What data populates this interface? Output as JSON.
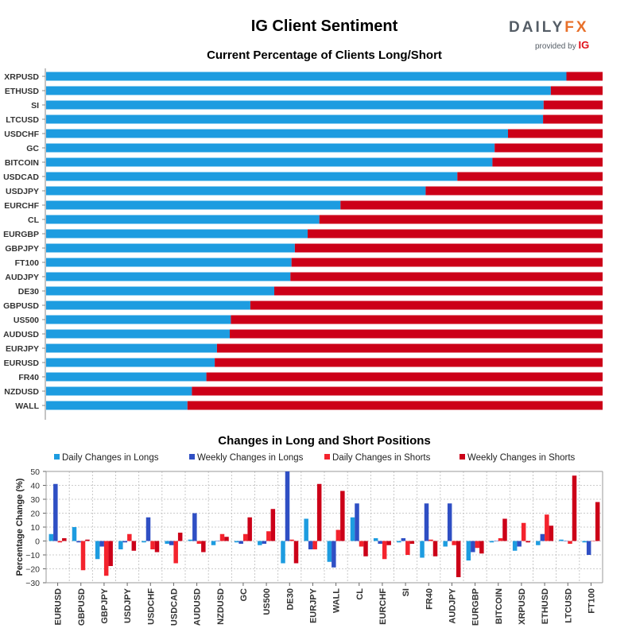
{
  "header": {
    "title": "IG Client Sentiment",
    "logo_text_main": "DAILY",
    "logo_text_accent": "FX",
    "logo_sub": "provided by",
    "logo_sub_accent": "IG"
  },
  "chart_data": [
    {
      "type": "bar",
      "orientation": "horizontal",
      "stacked": true,
      "title": "Current Percentage of Clients Long/Short",
      "categories": [
        "XRPUSD",
        "ETHUSD",
        "SI",
        "LTCUSD",
        "USDCHF",
        "GC",
        "BITCOIN",
        "USDCAD",
        "USDJPY",
        "EURCHF",
        "CL",
        "EURGBP",
        "GBPJPY",
        "FT100",
        "AUDJPY",
        "DE30",
        "GBPUSD",
        "US500",
        "AUDUSD",
        "EURJPY",
        "EURUSD",
        "FR40",
        "NZDUSD",
        "WALL"
      ],
      "series": [
        {
          "values": [
            93.5,
            90.7,
            89.4,
            89.3,
            83.0,
            80.6,
            80.2,
            73.9,
            68.2,
            52.9,
            49.1,
            47.0,
            44.7,
            44.1,
            43.9,
            41.0,
            36.7,
            33.2,
            33.0,
            30.7,
            30.3,
            28.8,
            26.2,
            25.4
          ]
        },
        {
          "values": [
            6.5,
            9.3,
            10.6,
            10.7,
            17.0,
            19.4,
            19.8,
            26.1,
            31.8,
            47.1,
            50.9,
            53.0,
            55.3,
            55.9,
            56.1,
            59.0,
            63.3,
            66.8,
            67.0,
            69.3,
            69.7,
            71.2,
            73.8,
            74.6
          ]
        }
      ],
      "xlim": [
        0,
        100
      ],
      "colors": {
        "long": "#1d9ce0",
        "short": "#cc0018"
      }
    },
    {
      "type": "bar",
      "title": "Changes in Long and Short Positions",
      "ylabel": "Percentage Change (%)",
      "xlabel": "",
      "ylim": [
        -30,
        50
      ],
      "yticks": [
        "50",
        "40",
        "30",
        "20",
        "10",
        "0",
        "−10",
        "−20",
        "−30"
      ],
      "grid": true,
      "legend_position": "top",
      "categories": [
        "EURUSD",
        "GBPUSD",
        "GBPJPY",
        "USDJPY",
        "USDCHF",
        "USDCAD",
        "AUDUSD",
        "NZDUSD",
        "GC",
        "US500",
        "DE30",
        "EURJPY",
        "WALL",
        "CL",
        "EURCHF",
        "SI",
        "FR40",
        "AUDJPY",
        "EURGBP",
        "BITCOIN",
        "XRPUSD",
        "ETHUSD",
        "LTCUSD",
        "FT100"
      ],
      "series": [
        {
          "name": "Daily Changes in Longs",
          "color": "#1d9ce0",
          "values": [
            5,
            10,
            -13,
            -6,
            -1,
            -2,
            1,
            -3,
            -1,
            -3,
            -16,
            16,
            -15,
            17,
            2,
            -1,
            -12,
            -4,
            -14,
            -1,
            -7,
            -3,
            1,
            -1
          ]
        },
        {
          "name": "Weekly Changes in Longs",
          "color": "#2f4fc4",
          "values": [
            41,
            -1,
            -4,
            -1,
            17,
            -3,
            20,
            0,
            -2,
            -2,
            50,
            -6,
            -19,
            27,
            -2,
            2,
            27,
            27,
            -8,
            0,
            -4,
            5,
            0,
            -10
          ]
        },
        {
          "name": "Daily Changes in Shorts",
          "color": "#f4232d",
          "values": [
            -1,
            -21,
            -25,
            5,
            -6,
            -16,
            -2,
            5,
            5,
            7,
            1,
            -6,
            8,
            -4,
            -13,
            -10,
            1,
            -3,
            -5,
            2,
            13,
            19,
            -2,
            0
          ]
        },
        {
          "name": "Weekly Changes in Shorts",
          "color": "#cc0018",
          "values": [
            2,
            1,
            -18,
            -7,
            -8,
            6,
            -8,
            3,
            17,
            23,
            -16,
            41,
            36,
            -11,
            -3,
            -2,
            -11,
            -26,
            -9,
            16,
            -1,
            11,
            47,
            28
          ]
        }
      ]
    }
  ]
}
